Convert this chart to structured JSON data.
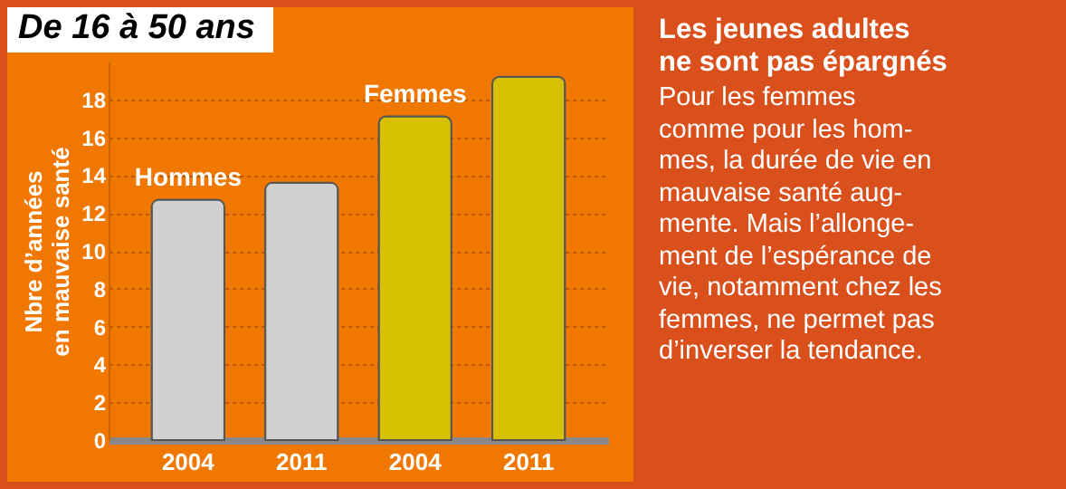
{
  "chart_data": {
    "type": "bar",
    "title": "De 16 à 50 ans",
    "subtitle": "Les jeunes adultes\nne sont pas épargnés",
    "annotations": [
      "Pour les femmes\ncomme pour les hom-\nmes, la durée de vie en\nmauvaise santé aug-\nmente. Mais l’allonge-\nment de l’espérance de\nvie, notamment chez les\nfemmes, ne permet pas\nd’inverser la tendance."
    ],
    "ylabel": "Nbre d’années\nen mauvaise santé",
    "categories": [
      "2004",
      "2011",
      "2004",
      "2011"
    ],
    "series": [
      {
        "name": "Hommes",
        "color": "#d0d0d0",
        "values": [
          12.7,
          13.6,
          null,
          null
        ]
      },
      {
        "name": "Femmes",
        "color": "#d6c000",
        "values": [
          null,
          null,
          17.1,
          19.2
        ]
      }
    ],
    "ylim": [
      0,
      20
    ],
    "yticks": [
      0,
      2,
      4,
      6,
      8,
      10,
      12,
      14,
      16,
      18
    ],
    "grid": "y",
    "legend": false
  }
}
